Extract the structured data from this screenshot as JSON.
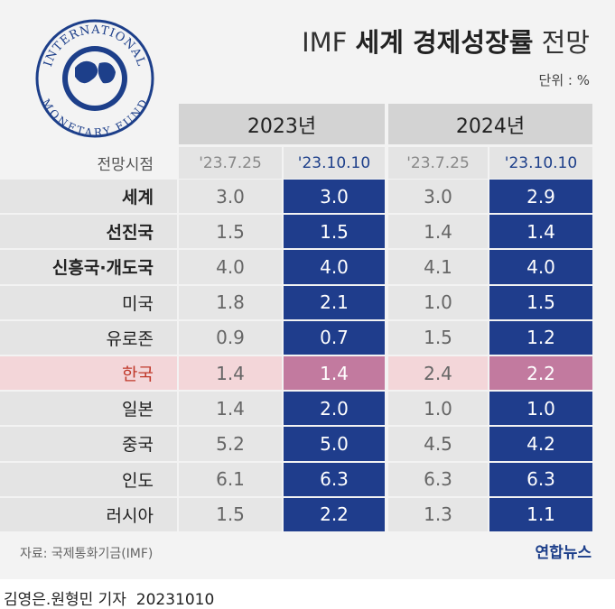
{
  "header": {
    "title": {
      "prefix": "IMF",
      "bold": "세계 경제성장률",
      "suffix": "전망"
    },
    "unit": "단위 : %",
    "logo": {
      "top": "INTERNATIONAL",
      "bottom": "MONETARY FUND"
    }
  },
  "table": {
    "years": [
      "2023년",
      "2024년"
    ],
    "forecast_label": "전망시점",
    "dates": [
      "'23.7.25",
      "'23.10.10",
      "'23.7.25",
      "'23.10.10"
    ],
    "rows": [
      [
        "세계",
        "3.0",
        "3.0",
        "3.0",
        "2.9"
      ],
      [
        "선진국",
        "1.5",
        "1.5",
        "1.4",
        "1.4"
      ],
      [
        "신흥국·개도국",
        "4.0",
        "4.0",
        "4.1",
        "4.0"
      ],
      [
        "미국",
        "1.8",
        "2.1",
        "1.0",
        "1.5"
      ],
      [
        "유로존",
        "0.9",
        "0.7",
        "1.5",
        "1.2"
      ],
      [
        "한국",
        "1.4",
        "1.4",
        "2.4",
        "2.2"
      ],
      [
        "일본",
        "1.4",
        "2.0",
        "1.0",
        "1.0"
      ],
      [
        "중국",
        "5.2",
        "5.0",
        "4.5",
        "4.2"
      ],
      [
        "인도",
        "6.1",
        "6.3",
        "6.3",
        "6.3"
      ],
      [
        "러시아",
        "1.5",
        "2.2",
        "1.3",
        "1.1"
      ]
    ]
  },
  "footer": {
    "source": "자료: 국제통화기금(IMF)",
    "brand": "연합뉴스",
    "byline": "김영은.원형민 기자",
    "date": "20231010"
  }
}
